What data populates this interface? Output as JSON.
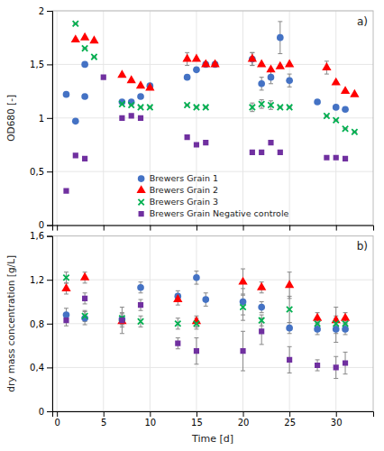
{
  "chart_data": [
    {
      "type": "scatter",
      "annotations": [
        "a)"
      ],
      "ylabel": "OD680 [-]",
      "xlim": [
        -0.5,
        34
      ],
      "xticks": [
        0,
        5,
        10,
        15,
        20,
        25,
        30
      ],
      "ylim": [
        0,
        2.0
      ],
      "yticks": [
        0,
        {
          "value": 0.5,
          "label": "0,5"
        },
        1,
        {
          "value": 1.5,
          "label": "1,5"
        },
        2
      ],
      "grid": true,
      "tick_labels": "y",
      "legend": "lower center",
      "series": [
        {
          "name": "Brewers Grain 1",
          "color": "#4472C4",
          "marker": "circle",
          "x": [
            1,
            2,
            3,
            3,
            7,
            8,
            9,
            10,
            14,
            15,
            16,
            17,
            21,
            22,
            23,
            24,
            25,
            28,
            30,
            31
          ],
          "values": [
            1.22,
            0.97,
            1.5,
            1.2,
            1.15,
            1.15,
            1.2,
            1.3,
            1.38,
            1.45,
            1.5,
            1.5,
            1.55,
            1.32,
            1.38,
            1.75,
            1.35,
            1.15,
            1.1,
            1.08
          ],
          "errors": [
            0,
            0,
            0,
            0,
            0,
            0,
            0,
            0,
            0,
            0,
            0,
            0,
            0.06,
            0.06,
            0.06,
            0.15,
            0.06,
            0,
            0,
            0
          ]
        },
        {
          "name": "Brewers Grain 2",
          "color": "#FF0000",
          "marker": "triangle",
          "x": [
            2,
            3,
            4,
            7,
            8,
            9,
            10,
            14,
            15,
            16,
            17,
            21,
            22,
            23,
            24,
            25,
            29,
            30,
            31,
            32
          ],
          "values": [
            1.73,
            1.75,
            1.72,
            1.4,
            1.35,
            1.3,
            1.28,
            1.55,
            1.55,
            1.5,
            1.5,
            1.55,
            1.5,
            1.45,
            1.48,
            1.5,
            1.47,
            1.33,
            1.25,
            1.22
          ],
          "errors": [
            0,
            0,
            0,
            0,
            0,
            0,
            0,
            0.06,
            0,
            0,
            0,
            0.06,
            0,
            0,
            0,
            0,
            0.06,
            0,
            0,
            0
          ]
        },
        {
          "name": "Brewers Grain 3",
          "color": "#00B050",
          "marker": "cross",
          "x": [
            2,
            3,
            4,
            7,
            8,
            9,
            10,
            14,
            15,
            16,
            21,
            22,
            23,
            24,
            25,
            29,
            30,
            31,
            32
          ],
          "values": [
            1.88,
            1.65,
            1.57,
            1.13,
            1.12,
            1.1,
            1.1,
            1.12,
            1.1,
            1.1,
            1.1,
            1.13,
            1.12,
            1.1,
            1.1,
            1.02,
            0.98,
            0.9,
            0.87
          ],
          "errors": [
            0,
            0,
            0,
            0,
            0,
            0,
            0,
            0,
            0,
            0,
            0.04,
            0.04,
            0.04,
            0,
            0,
            0,
            0,
            0,
            0
          ]
        },
        {
          "name": "Brewers Grain Negative controle",
          "color": "#7030A0",
          "marker": "square",
          "x": [
            1,
            2,
            3,
            5,
            7,
            8,
            9,
            14,
            15,
            16,
            21,
            22,
            23,
            24,
            29,
            30,
            31
          ],
          "values": [
            0.32,
            0.65,
            0.62,
            1.38,
            1.0,
            1.02,
            1.0,
            0.82,
            0.75,
            0.77,
            0.68,
            0.68,
            0.77,
            0.68,
            0.63,
            0.63,
            0.62
          ],
          "errors": [
            0,
            0,
            0,
            0,
            0,
            0,
            0,
            0,
            0,
            0,
            0,
            0,
            0,
            0,
            0,
            0,
            0
          ]
        }
      ]
    },
    {
      "type": "scatter",
      "annotations": [
        "b)"
      ],
      "ylabel": "dry mass concentration [g/L]",
      "xlabel": "Time [d]",
      "xlim": [
        -0.5,
        34
      ],
      "xticks": [
        0,
        5,
        10,
        15,
        20,
        25,
        30
      ],
      "ylim": [
        0,
        1.6
      ],
      "yticks": [
        0,
        {
          "value": 0.4,
          "label": "0,4"
        },
        {
          "value": 0.8,
          "label": "0,8"
        },
        {
          "value": 1.2,
          "label": "1,2"
        },
        {
          "value": 1.6,
          "label": "1,6"
        }
      ],
      "grid": true,
      "series": [
        {
          "color": "#4472C4",
          "marker": "circle",
          "x": [
            1,
            3,
            7,
            9,
            13,
            15,
            16,
            20,
            22,
            25,
            28,
            30,
            31
          ],
          "values": [
            0.88,
            0.85,
            0.84,
            1.13,
            1.05,
            1.22,
            1.02,
            1.0,
            0.95,
            0.76,
            0.75,
            0.75,
            0.75
          ],
          "errors": [
            0.06,
            0.06,
            0.05,
            0.05,
            0.05,
            0.06,
            0.06,
            0.12,
            0.05,
            0.05,
            0.05,
            0.12,
            0.05
          ]
        },
        {
          "color": "#FF0000",
          "marker": "triangle",
          "x": [
            1,
            3,
            7,
            13,
            15,
            20,
            22,
            25,
            28,
            30,
            31
          ],
          "values": [
            1.12,
            1.22,
            0.82,
            1.02,
            0.82,
            1.18,
            1.13,
            1.15,
            0.85,
            0.83,
            0.85
          ],
          "errors": [
            0.05,
            0.05,
            0.05,
            0.05,
            0.05,
            0.12,
            0.05,
            0.12,
            0.05,
            0.12,
            0.05
          ]
        },
        {
          "color": "#00B050",
          "marker": "cross",
          "x": [
            1,
            3,
            7,
            9,
            13,
            15,
            20,
            22,
            25,
            28,
            30,
            31
          ],
          "values": [
            1.22,
            0.87,
            0.85,
            0.82,
            0.8,
            0.8,
            0.95,
            0.83,
            0.93,
            0.8,
            0.8,
            0.8
          ],
          "errors": [
            0.05,
            0.05,
            0.05,
            0.05,
            0.05,
            0.05,
            0.12,
            0.05,
            0.12,
            0.05,
            0.05,
            0.05
          ]
        },
        {
          "color": "#7030A0",
          "marker": "square",
          "x": [
            1,
            3,
            7,
            9,
            13,
            15,
            20,
            22,
            25,
            28,
            30,
            31
          ],
          "values": [
            0.83,
            1.03,
            0.83,
            0.97,
            0.62,
            0.55,
            0.55,
            0.73,
            0.47,
            0.42,
            0.4,
            0.44
          ],
          "errors": [
            0.05,
            0.05,
            0.12,
            0.05,
            0.05,
            0.12,
            0.18,
            0.12,
            0.12,
            0.05,
            0.1,
            0.1
          ]
        }
      ]
    }
  ]
}
